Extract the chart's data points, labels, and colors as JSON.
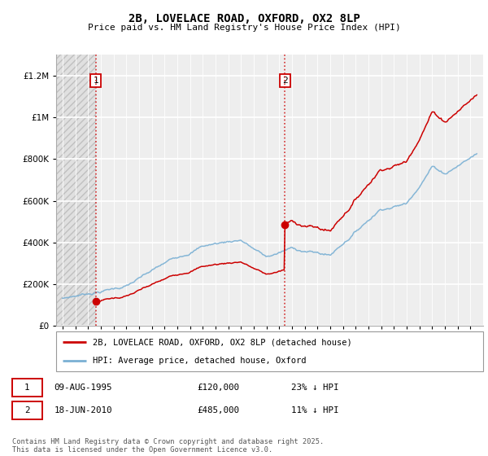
{
  "title": "2B, LOVELACE ROAD, OXFORD, OX2 8LP",
  "subtitle": "Price paid vs. HM Land Registry's House Price Index (HPI)",
  "ylim": [
    0,
    1300000
  ],
  "yticks": [
    0,
    200000,
    400000,
    600000,
    800000,
    1000000,
    1200000
  ],
  "ytick_labels": [
    "£0",
    "£200K",
    "£400K",
    "£600K",
    "£800K",
    "£1M",
    "£1.2M"
  ],
  "sale1_year": 1995.6,
  "sale1_price": 120000,
  "sale2_year": 2010.46,
  "sale2_price": 485000,
  "red_color": "#cc0000",
  "blue_color": "#7ab0d4",
  "legend_label_red": "2B, LOVELACE ROAD, OXFORD, OX2 8LP (detached house)",
  "legend_label_blue": "HPI: Average price, detached house, Oxford",
  "footnote": "Contains HM Land Registry data © Crown copyright and database right 2025.\nThis data is licensed under the Open Government Licence v3.0.",
  "xstart": 1992.5,
  "xend": 2026.0,
  "plot_bg": "#eeeeee"
}
